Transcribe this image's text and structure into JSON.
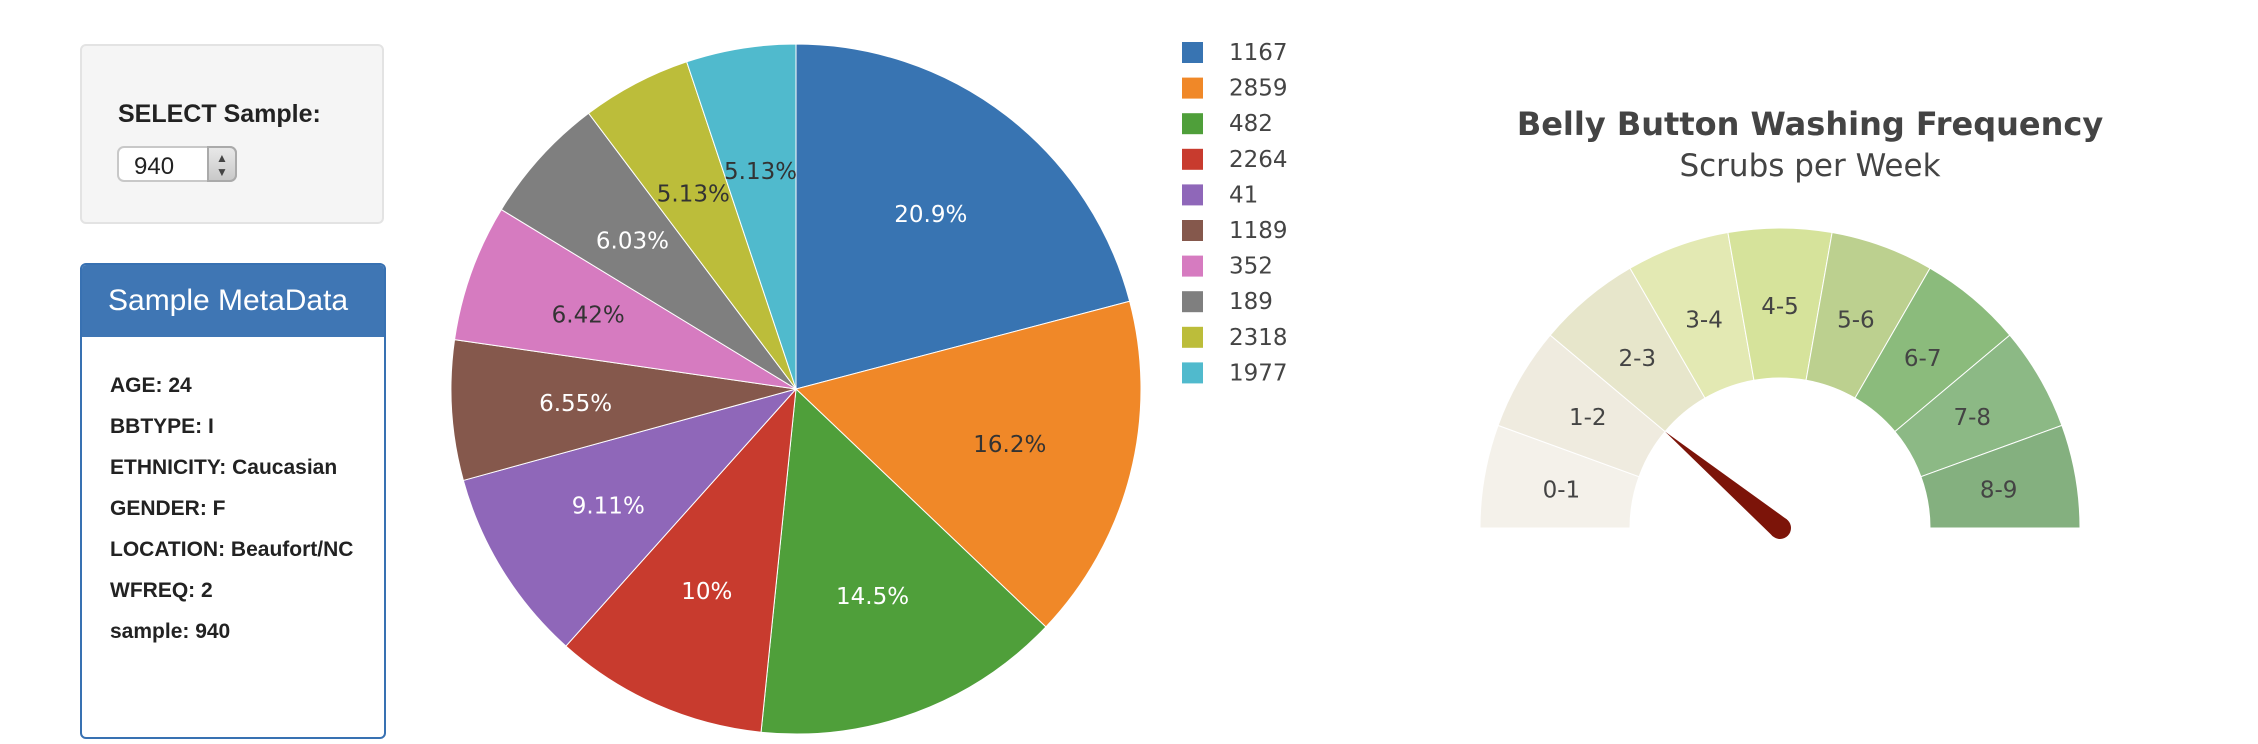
{
  "selector": {
    "label": "SELECT Sample:",
    "value": "940"
  },
  "metadata": {
    "title": "Sample MetaData",
    "rows": [
      "AGE: 24",
      "BBTYPE: I",
      "ETHNICITY: Caucasian",
      "GENDER: F",
      "LOCATION: Beaufort/NC",
      "WFREQ: 2",
      "sample: 940"
    ]
  },
  "chart_data": [
    {
      "type": "pie",
      "labels": [
        "1167",
        "2859",
        "482",
        "2264",
        "41",
        "1189",
        "352",
        "189",
        "2318",
        "1977"
      ],
      "values": [
        20.9,
        16.2,
        14.5,
        10.0,
        9.11,
        6.55,
        6.42,
        6.03,
        5.13,
        5.13
      ],
      "slice_labels": [
        "20.9%",
        "16.2%",
        "14.5%",
        "10%",
        "9.11%",
        "6.55%",
        "6.42%",
        "6.03%",
        "5.13%",
        "5.13%"
      ],
      "colors": [
        "#3874b2",
        "#f08828",
        "#4f9f3a",
        "#c83b2e",
        "#8f67b9",
        "#85584c",
        "#d67bc0",
        "#7f7f7f",
        "#bcbd3a",
        "#50bacd"
      ],
      "legend_placement": "right"
    },
    {
      "type": "gauge",
      "title": "Belly Button Washing Frequency",
      "subtitle": "Scrubs per Week",
      "segments": [
        "0-1",
        "1-2",
        "2-3",
        "3-4",
        "4-5",
        "5-6",
        "6-7",
        "7-8",
        "8-9"
      ],
      "colors": [
        "#f4f1ea",
        "#efebdf",
        "#e7e6cb",
        "#e3e9b3",
        "#d6e39b",
        "#bcd08f",
        "#8bbb7c",
        "#8cb985",
        "#84b07f"
      ],
      "value": 2,
      "range": [
        0,
        9
      ],
      "needle_color": "#7c1409"
    }
  ]
}
